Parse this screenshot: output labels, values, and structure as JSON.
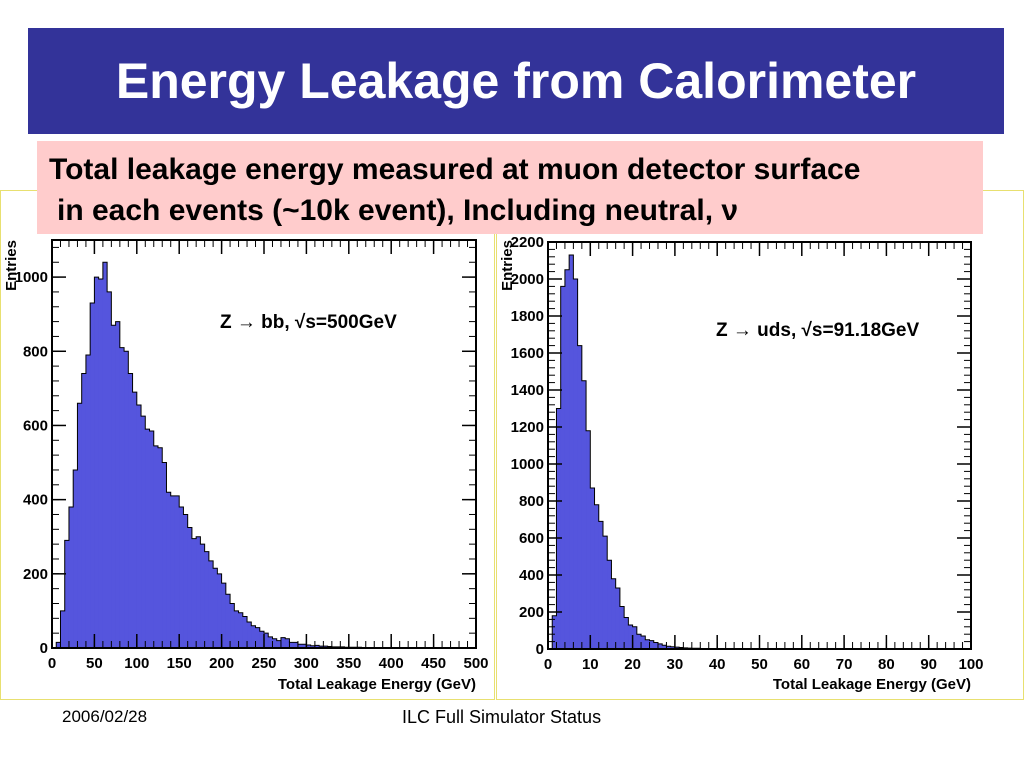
{
  "slide": {
    "title": "Energy Leakage from Calorimeter",
    "subtitle_line1": "Total leakage energy measured at muon detector surface",
    "subtitle_line2": "in each events (~10k event), Including neutral,  ν",
    "footer_date": "2006/02/28",
    "footer_center": "ILC Full Simulator Status"
  },
  "colors": {
    "title_bg": "#333399",
    "subtitle_bg": "#ffcccc",
    "hist_fill": "#5555dd",
    "hist_stroke": "#000000"
  },
  "chart_data": [
    {
      "type": "bar",
      "title": "",
      "annotation": "Z → bb, √s=500GeV",
      "xlabel": "Total Leakage Energy (GeV)",
      "ylabel": "Entries",
      "xlim": [
        0,
        500
      ],
      "ylim": [
        0,
        1100
      ],
      "xticks": [
        0,
        50,
        100,
        150,
        200,
        250,
        300,
        350,
        400,
        450,
        500
      ],
      "yticks": [
        0,
        200,
        400,
        600,
        800,
        1000
      ],
      "bin_width": 5,
      "values": [
        0,
        15,
        100,
        290,
        380,
        480,
        660,
        740,
        790,
        930,
        1000,
        995,
        1040,
        960,
        870,
        880,
        810,
        800,
        740,
        690,
        655,
        625,
        590,
        585,
        545,
        540,
        500,
        420,
        410,
        410,
        380,
        360,
        325,
        295,
        300,
        280,
        260,
        235,
        215,
        200,
        175,
        145,
        120,
        100,
        95,
        85,
        70,
        60,
        55,
        45,
        40,
        30,
        25,
        20,
        28,
        25,
        15,
        15,
        10,
        10,
        8,
        6,
        7,
        5,
        5,
        4,
        3,
        3,
        3,
        2,
        2,
        2,
        2,
        1,
        1,
        1,
        1,
        1,
        1,
        1,
        1,
        1,
        1,
        1,
        0,
        1,
        0,
        0,
        0,
        1,
        0,
        0,
        0,
        0,
        0,
        0,
        0,
        0,
        0,
        0
      ]
    },
    {
      "type": "bar",
      "title": "",
      "annotation": "Z → uds, √s=91.18GeV",
      "xlabel": "Total Leakage Energy (GeV)",
      "ylabel": "Entries",
      "xlim": [
        0,
        100
      ],
      "ylim": [
        0,
        2200
      ],
      "xticks": [
        0,
        10,
        20,
        30,
        40,
        50,
        60,
        70,
        80,
        90,
        100
      ],
      "yticks": [
        0,
        200,
        400,
        600,
        800,
        1000,
        1200,
        1400,
        1600,
        1800,
        2000,
        2200
      ],
      "bin_width": 1,
      "values": [
        0,
        180,
        1300,
        1960,
        2050,
        2130,
        2000,
        1640,
        1450,
        1180,
        870,
        780,
        690,
        610,
        480,
        380,
        330,
        230,
        170,
        130,
        120,
        80,
        70,
        50,
        45,
        35,
        28,
        20,
        15,
        12,
        10,
        8,
        6,
        5,
        4,
        4,
        3,
        3,
        2,
        2,
        2,
        2,
        2,
        1,
        1,
        1,
        1,
        1,
        1,
        1,
        1,
        1,
        1,
        1,
        1,
        1,
        1,
        1,
        1,
        1,
        0,
        0,
        0,
        0,
        0,
        0,
        0,
        0,
        0,
        0,
        0,
        0,
        0,
        0,
        0,
        0,
        0,
        0,
        0,
        0,
        0,
        0,
        0,
        0,
        0,
        0,
        0,
        0,
        0,
        0,
        0,
        0,
        0,
        0,
        0,
        0,
        0,
        0,
        0,
        0
      ]
    }
  ]
}
